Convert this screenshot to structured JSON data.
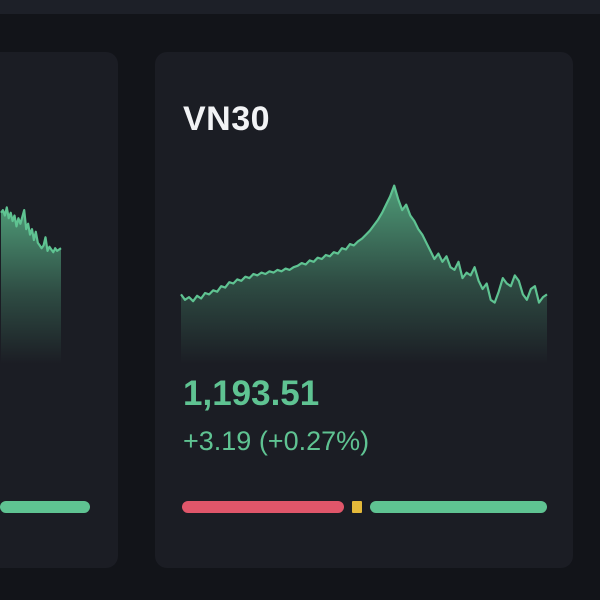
{
  "cards": [
    {
      "id": "left-partial",
      "title": "",
      "price": "",
      "change": "",
      "sparkline": [
        0.7,
        0.72,
        0.68,
        0.74,
        0.66,
        0.7,
        0.64,
        0.68,
        0.6,
        0.66,
        0.62,
        0.67,
        0.72,
        0.58,
        0.62,
        0.54,
        0.58,
        0.5,
        0.56,
        0.48,
        0.46,
        0.44,
        0.46,
        0.52,
        0.42,
        0.45,
        0.43,
        0.41,
        0.44,
        0.42,
        0.43,
        0.44
      ],
      "breadth": {
        "declining": 0,
        "unchanged": 0,
        "advancing": 1
      }
    },
    {
      "id": "vn30",
      "title": "VN30",
      "price": "1,193.51",
      "change": "+3.19 (+0.27%)",
      "sparkline": [
        0.1,
        0.06,
        0.08,
        0.05,
        0.09,
        0.07,
        0.11,
        0.1,
        0.13,
        0.12,
        0.16,
        0.15,
        0.19,
        0.18,
        0.21,
        0.2,
        0.23,
        0.22,
        0.25,
        0.24,
        0.26,
        0.25,
        0.27,
        0.26,
        0.28,
        0.27,
        0.29,
        0.28,
        0.3,
        0.31,
        0.33,
        0.32,
        0.35,
        0.34,
        0.37,
        0.36,
        0.39,
        0.38,
        0.41,
        0.4,
        0.44,
        0.43,
        0.47,
        0.46,
        0.49,
        0.51,
        0.54,
        0.57,
        0.61,
        0.65,
        0.7,
        0.76,
        0.82,
        0.9,
        0.8,
        0.72,
        0.76,
        0.68,
        0.64,
        0.58,
        0.54,
        0.48,
        0.42,
        0.36,
        0.4,
        0.34,
        0.38,
        0.3,
        0.28,
        0.34,
        0.22,
        0.26,
        0.24,
        0.3,
        0.2,
        0.14,
        0.18,
        0.06,
        0.04,
        0.12,
        0.22,
        0.18,
        0.16,
        0.24,
        0.2,
        0.1,
        0.06,
        0.14,
        0.16,
        0.04,
        0.08,
        0.1
      ],
      "breadth": {
        "declining": 158,
        "unchanged": 10,
        "advancing": 172
      }
    }
  ],
  "colors": {
    "background": "#121419",
    "card": "#1b1d24",
    "up": "#5fc392",
    "down": "#e0566a",
    "unchanged": "#e4b93a",
    "title": "#f2f3f5"
  }
}
